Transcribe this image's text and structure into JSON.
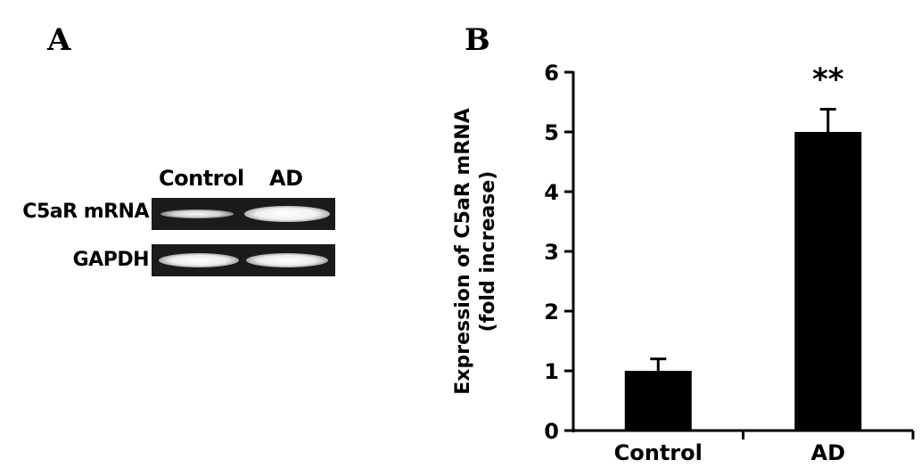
{
  "panels": {
    "a_letter": "A",
    "b_letter": "B"
  },
  "gel": {
    "columns": [
      "Control",
      "AD"
    ],
    "rows": [
      "C5aR mRNA",
      "GAPDH"
    ]
  },
  "chart_data": {
    "type": "bar",
    "categories": [
      "Control",
      "AD"
    ],
    "values": [
      1.0,
      5.0
    ],
    "errors": [
      0.2,
      0.38
    ],
    "annotations": [
      {
        "category": "AD",
        "text": "**"
      }
    ],
    "title": "",
    "xlabel": "",
    "ylabel": [
      "Expression of C5aR mRNA",
      "(fold increase)"
    ],
    "ylim": [
      0,
      6
    ],
    "yticks": [
      0,
      1,
      2,
      3,
      4,
      5,
      6
    ],
    "grid": false,
    "bar_color": "#000000"
  }
}
